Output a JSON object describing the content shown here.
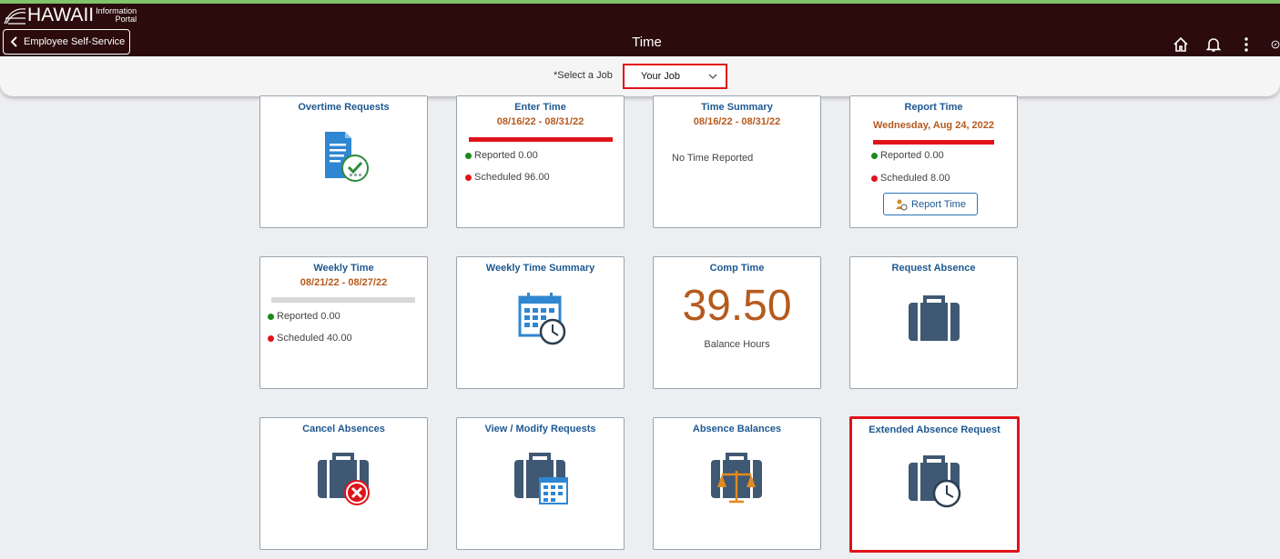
{
  "header": {
    "logo_main": "HAWAII",
    "logo_small_1": "Information",
    "logo_small_2": "Portal",
    "back_label": "Employee Self-Service",
    "title": "Time",
    "icons": [
      "home-icon",
      "bell-icon",
      "more-icon",
      "compass-icon"
    ]
  },
  "job": {
    "label": "*Select a Job",
    "selected": "Your Job"
  },
  "tiles": {
    "overtime": {
      "title": "Overtime Requests"
    },
    "enter_time": {
      "title": "Enter Time",
      "period": "08/16/22 - 08/31/22",
      "reported": "Reported 0.00",
      "scheduled": "Scheduled 96.00"
    },
    "time_summary": {
      "title": "Time Summary",
      "period": "08/16/22 - 08/31/22",
      "text": "No Time Reported"
    },
    "report_time": {
      "title": "Report Time",
      "date": "Wednesday, Aug 24, 2022",
      "reported": "Reported 0.00",
      "scheduled": "Scheduled 8.00",
      "button": "Report Time"
    },
    "weekly_time": {
      "title": "Weekly Time",
      "period": "08/21/22 - 08/27/22",
      "reported": "Reported 0.00",
      "scheduled": "Scheduled 40.00"
    },
    "weekly_summary": {
      "title": "Weekly Time Summary"
    },
    "comp_time": {
      "title": "Comp Time",
      "value": "39.50",
      "caption": "Balance Hours"
    },
    "request_absence": {
      "title": "Request Absence"
    },
    "cancel_absences": {
      "title": "Cancel Absences"
    },
    "view_modify": {
      "title": "View / Modify Requests"
    },
    "absence_balances": {
      "title": "Absence Balances"
    },
    "extended_absence": {
      "title": "Extended Absence Request"
    }
  },
  "colors": {
    "header_bg": "#2b0b0b",
    "tile_title": "#1d5891",
    "period": "#b55a1d",
    "highlight": "#e0131a",
    "reported_dot": "#1a8a1a",
    "scheduled_dot": "#e0131a",
    "icon_dark": "#3f5873"
  }
}
